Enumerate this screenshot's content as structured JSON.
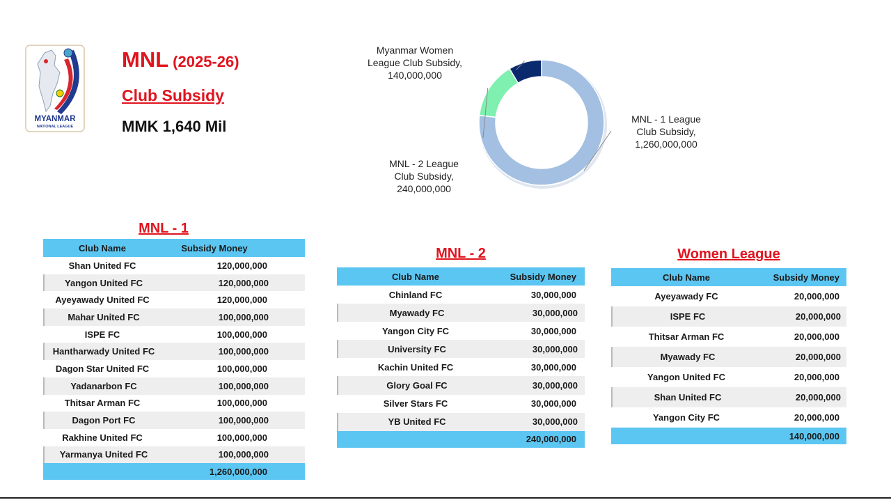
{
  "header": {
    "title": "MNL",
    "season": "(2025-26)",
    "subtitle": "Club Subsidy",
    "total": "MMK 1,640 Mil"
  },
  "logo": {
    "text_top": "MYANMAR",
    "text_bottom": "NATIONAL LEAGUE"
  },
  "chart_data": {
    "type": "pie",
    "style": "donut",
    "categories": [
      "MNL - 1 League Club Subsidy",
      "MNL - 2 League Club Subsidy",
      "Myanmar Women League Club Subsidy"
    ],
    "values": [
      1260000000,
      240000000,
      140000000
    ],
    "value_labels": [
      "1,260,000,000",
      "240,000,000",
      "140,000,000"
    ],
    "colors": [
      "#a3bfe2",
      "#7ff0b0",
      "#0b2a6e"
    ],
    "label_lines": [
      [
        "MNL - 1 League",
        "Club Subsidy,",
        "1,260,000,000"
      ],
      [
        "MNL - 2 League",
        "Club Subsidy,",
        "240,000,000"
      ],
      [
        "Myanmar Women",
        "League Club Subsidy,",
        "140,000,000"
      ]
    ]
  },
  "tables": [
    {
      "title": "MNL - 1",
      "col_name": "Club Name",
      "col_value": "Subsidy Money",
      "rows": [
        [
          "Shan United FC",
          "120,000,000"
        ],
        [
          "Yangon United FC",
          "120,000,000"
        ],
        [
          "Ayeyawady United FC",
          "120,000,000"
        ],
        [
          "Mahar United FC",
          "100,000,000"
        ],
        [
          "ISPE FC",
          "100,000,000"
        ],
        [
          "Hantharwady United FC",
          "100,000,000"
        ],
        [
          "Dagon Star United FC",
          "100,000,000"
        ],
        [
          "Yadanarbon FC",
          "100,000,000"
        ],
        [
          "Thitsar Arman FC",
          "100,000,000"
        ],
        [
          "Dagon Port FC",
          "100,000,000"
        ],
        [
          "Rakhine United FC",
          "100,000,000"
        ],
        [
          "Yarmanya United FC",
          "100,000,000"
        ]
      ],
      "total": "1,260,000,000"
    },
    {
      "title": "MNL - 2",
      "col_name": "Club Name",
      "col_value": "Subsidy Money",
      "rows": [
        [
          "Chinland FC",
          "30,000,000"
        ],
        [
          "Myawady FC",
          "30,000,000"
        ],
        [
          "Yangon City FC",
          "30,000,000"
        ],
        [
          "University FC",
          "30,000,000"
        ],
        [
          "Kachin United FC",
          "30,000,000"
        ],
        [
          "Glory Goal FC",
          "30,000,000"
        ],
        [
          "Silver Stars FC",
          "30,000,000"
        ],
        [
          "YB United FC",
          "30,000,000"
        ]
      ],
      "total": "240,000,000"
    },
    {
      "title": "Women League",
      "col_name": "Club Name",
      "col_value": "Subsidy Money",
      "rows": [
        [
          "Ayeyawady FC",
          "20,000,000"
        ],
        [
          "ISPE FC",
          "20,000,000"
        ],
        [
          "Thitsar Arman FC",
          "20,000,000"
        ],
        [
          "Myawady FC",
          "20,000,000"
        ],
        [
          "Yangon United FC",
          "20,000,000"
        ],
        [
          "Shan United FC",
          "20,000,000"
        ],
        [
          "Yangon City FC",
          "20,000,000"
        ]
      ],
      "total": "140,000,000"
    }
  ]
}
